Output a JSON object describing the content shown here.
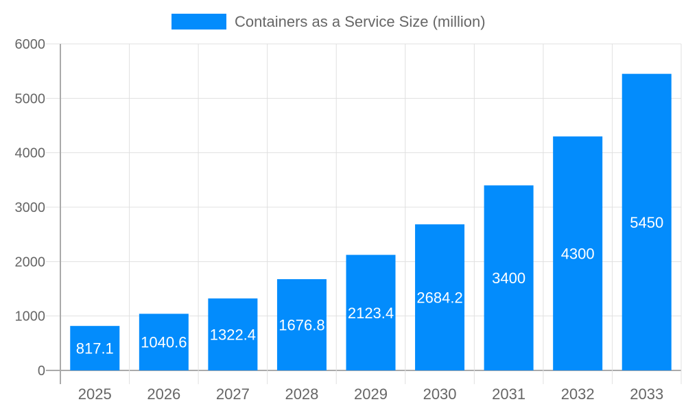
{
  "chart_data": {
    "type": "bar",
    "title": "",
    "xlabel": "",
    "ylabel": "",
    "categories": [
      "2025",
      "2026",
      "2027",
      "2028",
      "2029",
      "2030",
      "2031",
      "2032",
      "2033"
    ],
    "series": [
      {
        "name": "Containers as a Service Size (million)",
        "values": [
          817.1,
          1040.6,
          1322.4,
          1676.8,
          2123.4,
          2684.2,
          3400,
          4300,
          5450
        ],
        "labels": [
          "817.1",
          "1040.6",
          "1322.4",
          "1676.8",
          "2123.4",
          "2684.2",
          "3400",
          "4300",
          "5450"
        ],
        "color": "#038cfc"
      }
    ],
    "ylim": [
      0,
      6000
    ],
    "yticks": [
      "0",
      "1000",
      "2000",
      "3000",
      "4000",
      "5000",
      "6000"
    ],
    "grid": true,
    "legend_position": "top"
  }
}
